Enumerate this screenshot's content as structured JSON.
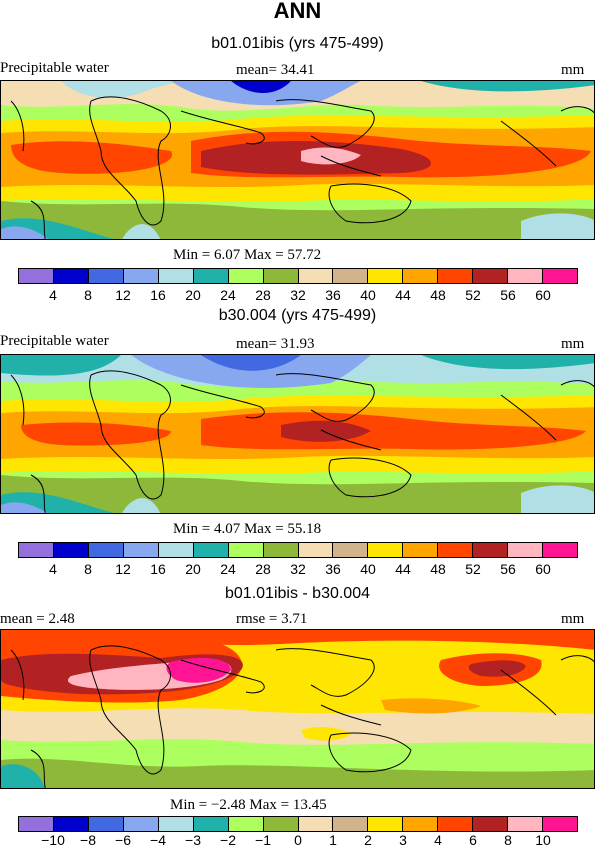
{
  "title": "ANN",
  "panels": [
    {
      "subtitle": "b01.01ibis (yrs 475-499)",
      "left_label": "Precipitable water",
      "mid_label": "mean=  34.41",
      "right_label": "mm",
      "minmax": "Min =   6.07  Max =  57.72",
      "colorbar": {
        "colors": [
          "#9370DB",
          "#0000CD",
          "#4169E1",
          "#87A8EE",
          "#B0E0E6",
          "#20B2AA",
          "#ADFF5F",
          "#8DB83A",
          "#F5DEB3",
          "#D2B48C",
          "#FFE600",
          "#FFA500",
          "#FF4500",
          "#B22222",
          "#FFB6C1",
          "#FF1493"
        ],
        "ticks": [
          "4",
          "8",
          "12",
          "16",
          "20",
          "24",
          "28",
          "32",
          "36",
          "40",
          "44",
          "48",
          "52",
          "56",
          "60"
        ]
      }
    },
    {
      "subtitle": "b30.004 (yrs 475-499)",
      "left_label": "Precipitable water",
      "mid_label": "mean=  31.93",
      "right_label": "mm",
      "minmax": "Min =   4.07  Max =  55.18",
      "colorbar": {
        "colors": [
          "#9370DB",
          "#0000CD",
          "#4169E1",
          "#87A8EE",
          "#B0E0E6",
          "#20B2AA",
          "#ADFF5F",
          "#8DB83A",
          "#F5DEB3",
          "#D2B48C",
          "#FFE600",
          "#FFA500",
          "#FF4500",
          "#B22222",
          "#FFB6C1",
          "#FF1493"
        ],
        "ticks": [
          "4",
          "8",
          "12",
          "16",
          "20",
          "24",
          "28",
          "32",
          "36",
          "40",
          "44",
          "48",
          "52",
          "56",
          "60"
        ]
      }
    },
    {
      "subtitle": "b01.01ibis - b30.004",
      "left_label": "mean =    2.48",
      "mid_label": "rmse =    3.71",
      "right_label": "mm",
      "minmax": "Min =  −2.48  Max =  13.45",
      "colorbar": {
        "colors": [
          "#9370DB",
          "#0000CD",
          "#4169E1",
          "#87A8EE",
          "#B0E0E6",
          "#20B2AA",
          "#ADFF5F",
          "#8DB83A",
          "#F5DEB3",
          "#D2B48C",
          "#FFE600",
          "#FFA500",
          "#FF4500",
          "#B22222",
          "#FFB6C1",
          "#FF1493"
        ],
        "ticks": [
          "−10",
          "−8",
          "−6",
          "−4",
          "−3",
          "−2",
          "−1",
          "0",
          "1",
          "2",
          "3",
          "4",
          "6",
          "8",
          "10"
        ]
      }
    }
  ]
}
